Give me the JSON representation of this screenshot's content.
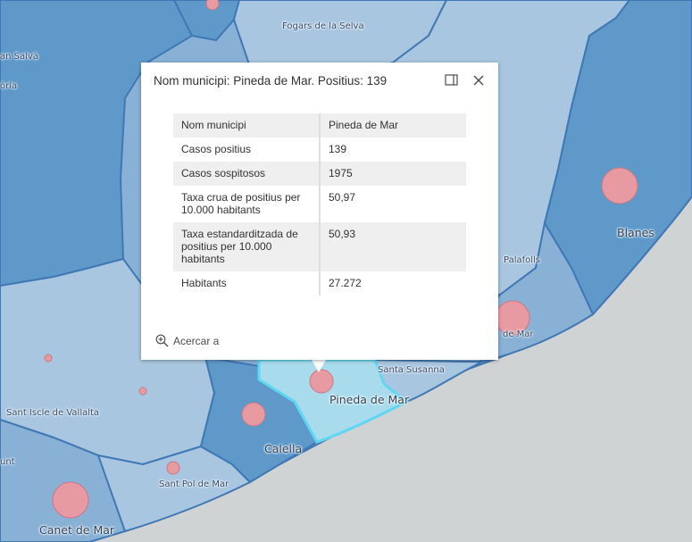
{
  "map": {
    "place_labels": [
      {
        "id": "fogars",
        "text": "Fogars de la Selva"
      },
      {
        "id": "salva",
        "text": "an Salvà"
      },
      {
        "id": "oria",
        "text": "òria"
      },
      {
        "id": "blanes",
        "text": "Blanes"
      },
      {
        "id": "palafolls",
        "text": "Palafolls"
      },
      {
        "id": "demar",
        "text": "de Mar"
      },
      {
        "id": "santa-susanna",
        "text": "Santa Susanna"
      },
      {
        "id": "pineda",
        "text": "Pineda de Mar"
      },
      {
        "id": "sant-iscle",
        "text": "Sant Iscle de Vallalta"
      },
      {
        "id": "calella",
        "text": "Calella"
      },
      {
        "id": "unt",
        "text": "unt"
      },
      {
        "id": "sant-pol",
        "text": "Sant Pol de Mar"
      },
      {
        "id": "canet",
        "text": "Canet de Mar"
      }
    ],
    "colors": {
      "sea": "#cfd3d4",
      "class_light": "#a9c6e0",
      "class_medium": "#89b1d6",
      "class_dark": "#5e99c9",
      "boundary": "#3f78b5",
      "selected_fill": "#a8dcec",
      "selected_outline": "#5fd6f2",
      "case_circle": "#e89aa3",
      "case_circle_stroke": "#c97880"
    }
  },
  "popup": {
    "title": "Nom municipi: Pineda de Mar. Positius: 139",
    "dock_icon": "dock-icon",
    "close_icon": "close-icon",
    "rows": [
      {
        "field": "Nom municipi",
        "value": "Pineda de Mar"
      },
      {
        "field": "Casos positius",
        "value": "139"
      },
      {
        "field": "Casos sospitosos",
        "value": "1975"
      },
      {
        "field": "Taxa crua de positius per 10.000 habitants",
        "value": "50,97"
      },
      {
        "field": "Taxa estandarditzada de positius per 10.000 habitants",
        "value": "50,93"
      },
      {
        "field": "Habitants",
        "value": "27.272"
      }
    ],
    "zoom_label": "Acercar a",
    "zoom_icon": "zoom-in-icon"
  }
}
